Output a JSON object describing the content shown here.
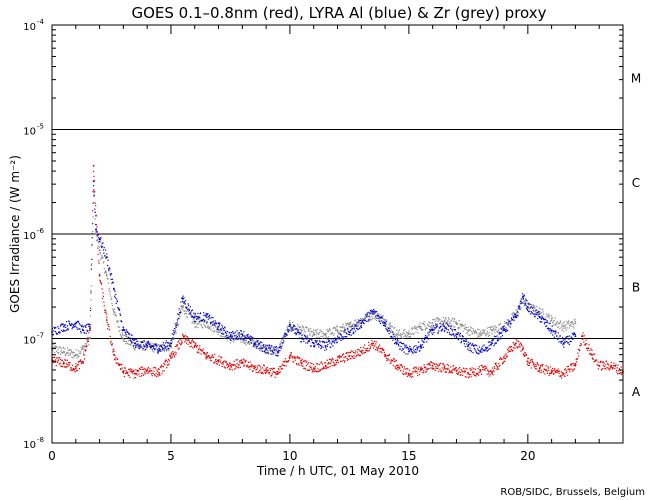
{
  "chart_data": {
    "type": "scatter",
    "title": "GOES 0.1–0.8nm (red), LYRA Al (blue) & Zr (grey) proxy",
    "xlabel": "Time / h UTC, 01 May 2010",
    "ylabel": "GOES Irradiance / (W m⁻²)",
    "credit": "ROB/SIDC, Brussels, Belgium",
    "xlim": [
      0,
      24
    ],
    "ylim": [
      1e-08,
      0.0001
    ],
    "yscale": "log",
    "x_ticks": [
      {
        "value": 0,
        "label": "0"
      },
      {
        "value": 5,
        "label": "5"
      },
      {
        "value": 10,
        "label": "10"
      },
      {
        "value": 15,
        "label": "15"
      },
      {
        "value": 20,
        "label": "20"
      }
    ],
    "y_ticks": [
      {
        "value": 1e-08,
        "base": "10",
        "exp": "-8"
      },
      {
        "value": 1e-07,
        "base": "10",
        "exp": "-7"
      },
      {
        "value": 1e-06,
        "base": "10",
        "exp": "-6"
      },
      {
        "value": 1e-05,
        "base": "10",
        "exp": "-5"
      },
      {
        "value": 0.0001,
        "base": "10",
        "exp": "-4"
      }
    ],
    "flare_class_lines": [
      1e-07,
      1e-06,
      1e-05
    ],
    "flare_classes": [
      {
        "label": "A",
        "value": 3.16e-08
      },
      {
        "label": "B",
        "value": 3.16e-07
      },
      {
        "label": "C",
        "value": 3.16e-06
      },
      {
        "label": "M",
        "value": 3.16e-05
      }
    ],
    "series": [
      {
        "name": "GOES 0.1-0.8nm",
        "color": "#e00000",
        "x": [
          0.0,
          0.5,
          1.0,
          1.3,
          1.6,
          1.75,
          1.85,
          2.0,
          2.3,
          2.6,
          3.0,
          3.5,
          4.0,
          4.5,
          5.0,
          5.5,
          6.0,
          6.5,
          7.0,
          7.5,
          8.0,
          8.5,
          9.0,
          9.5,
          10.0,
          10.5,
          11.0,
          11.5,
          12.0,
          12.5,
          13.0,
          13.5,
          14.0,
          14.5,
          15.0,
          15.5,
          16.0,
          16.5,
          17.0,
          17.5,
          18.0,
          18.5,
          19.0,
          19.5,
          19.8,
          20.0,
          20.5,
          21.0,
          21.5,
          22.0,
          22.3,
          22.7,
          23.0,
          23.5,
          24.0
        ],
        "values": [
          6.2e-08,
          5.8e-08,
          5.2e-08,
          6e-08,
          1.2e-07,
          4.5e-06,
          1.5e-06,
          4e-07,
          1.5e-07,
          7e-08,
          4.8e-08,
          4.6e-08,
          5e-08,
          4.7e-08,
          6.5e-08,
          1e-07,
          8.5e-08,
          6.8e-08,
          6.2e-08,
          5.5e-08,
          5.8e-08,
          5.2e-08,
          5e-08,
          4.6e-08,
          6.8e-08,
          5.8e-08,
          5.2e-08,
          5.5e-08,
          6.2e-08,
          6.8e-08,
          7.5e-08,
          9e-08,
          7e-08,
          5.5e-08,
          4.6e-08,
          5e-08,
          5.5e-08,
          5.2e-08,
          4.9e-08,
          4.6e-08,
          5e-08,
          4.8e-08,
          6.5e-08,
          9e-08,
          8e-08,
          6e-08,
          5.2e-08,
          4.8e-08,
          4.6e-08,
          5.5e-08,
          1.05e-07,
          7e-08,
          5.5e-08,
          5.5e-08,
          4.8e-08
        ]
      },
      {
        "name": "LYRA Al proxy",
        "color": "#0000c8",
        "x": [
          0.0,
          0.5,
          1.0,
          1.3,
          1.6,
          1.75,
          1.85,
          2.0,
          2.3,
          2.6,
          3.0,
          3.5,
          4.0,
          4.5,
          5.0,
          5.5,
          6.0,
          6.5,
          7.0,
          7.5,
          8.0,
          8.5,
          9.0,
          9.5,
          10.0,
          10.5,
          11.0,
          11.5,
          12.0,
          12.5,
          13.0,
          13.5,
          14.0,
          14.5,
          15.0,
          15.5,
          16.0,
          16.5,
          17.0,
          17.5,
          18.0,
          18.5,
          19.0,
          19.5,
          19.8,
          20.0,
          20.5,
          21.0,
          21.5,
          22.0
        ],
        "values": [
          1.15e-07,
          1.3e-07,
          1.4e-07,
          1.2e-07,
          1.25e-07,
          3.2e-06,
          1.1e-06,
          9e-07,
          6e-07,
          3e-07,
          1.2e-07,
          9e-08,
          8.5e-08,
          8e-08,
          9e-08,
          2.4e-07,
          1.6e-07,
          1.6e-07,
          1.3e-07,
          1.05e-07,
          1.1e-07,
          9e-08,
          8e-08,
          7.5e-08,
          1.35e-07,
          1e-07,
          9e-08,
          8.5e-08,
          1e-07,
          1.15e-07,
          1.4e-07,
          1.8e-07,
          1.4e-07,
          9e-08,
          7.5e-08,
          8.5e-08,
          1.2e-07,
          1.3e-07,
          1.1e-07,
          8.5e-08,
          7.5e-08,
          9e-08,
          1.2e-07,
          1.6e-07,
          2.5e-07,
          2e-07,
          1.6e-07,
          1.2e-07,
          9e-08,
          1.05e-07
        ]
      },
      {
        "name": "LYRA Zr proxy",
        "color": "#8c8c8c",
        "x": [
          0.0,
          0.5,
          1.0,
          1.3,
          1.6,
          1.75,
          1.85,
          2.0,
          2.3,
          2.6,
          3.0,
          3.5,
          4.0,
          4.5,
          5.0,
          5.5,
          6.0,
          6.5,
          7.0,
          7.5,
          8.0,
          8.5,
          9.0,
          9.5,
          10.0,
          10.5,
          11.0,
          11.5,
          12.0,
          12.5,
          13.0,
          13.5,
          14.0,
          14.5,
          15.0,
          15.5,
          16.0,
          16.5,
          17.0,
          17.5,
          18.0,
          18.5,
          19.0,
          19.5,
          19.8,
          20.0,
          20.5,
          21.0,
          21.5,
          22.0
        ],
        "values": [
          8e-08,
          7.5e-08,
          7e-08,
          8e-08,
          1e-07,
          2.5e-06,
          1e-06,
          7e-07,
          4e-07,
          1.8e-07,
          1e-07,
          8.5e-08,
          8.5e-08,
          8e-08,
          8.5e-08,
          2e-07,
          1.4e-07,
          1.4e-07,
          1.2e-07,
          1e-07,
          1e-07,
          9e-08,
          8e-08,
          7.5e-08,
          1.35e-07,
          1.2e-07,
          1.1e-07,
          1.1e-07,
          1.2e-07,
          1.3e-07,
          1.5e-07,
          1.7e-07,
          1.5e-07,
          1.1e-07,
          1.1e-07,
          1.3e-07,
          1.4e-07,
          1.45e-07,
          1.4e-07,
          1.2e-07,
          1.1e-07,
          1.2e-07,
          1.3e-07,
          1.7e-07,
          2.4e-07,
          2e-07,
          1.8e-07,
          1.5e-07,
          1.3e-07,
          1.4e-07
        ]
      }
    ]
  }
}
